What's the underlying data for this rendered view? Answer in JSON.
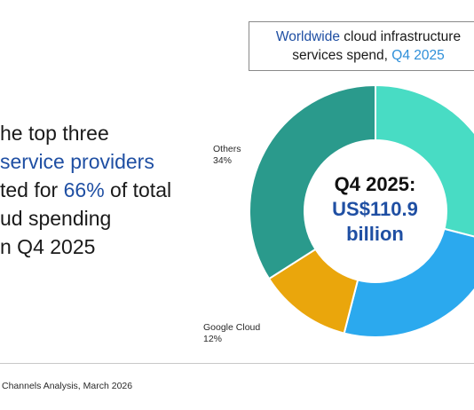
{
  "headline": {
    "line1": "he top three",
    "line2": "service providers",
    "line3a": "ted for ",
    "line3_pct": "66%",
    "line3b": " of total",
    "line4": "ud spending",
    "line5": "n Q4 2025"
  },
  "title_box": {
    "part1": "Worldwide",
    "part2": " cloud infrastructure",
    "part3": "services spend, ",
    "part4": "Q4 2025"
  },
  "chart_data": {
    "type": "pie",
    "subtype": "donut",
    "slices": [
      {
        "label": "",
        "pct": 29,
        "color": "#48dcc4"
      },
      {
        "label": "",
        "pct": 25,
        "color": "#2ba9ee"
      },
      {
        "label": "Google Cloud",
        "pct": 12,
        "color": "#eaa60c"
      },
      {
        "label": "Others",
        "pct": 34,
        "color": "#2a9a8c"
      }
    ],
    "labels": {
      "others_name": "Others",
      "others_pct": "34%",
      "google_name": "Google Cloud",
      "google_pct": "12%"
    },
    "center": {
      "line1": "Q4 2025:",
      "line2": "US$110.9",
      "line3": "billion"
    }
  },
  "source": "Channels Analysis, March 2026"
}
